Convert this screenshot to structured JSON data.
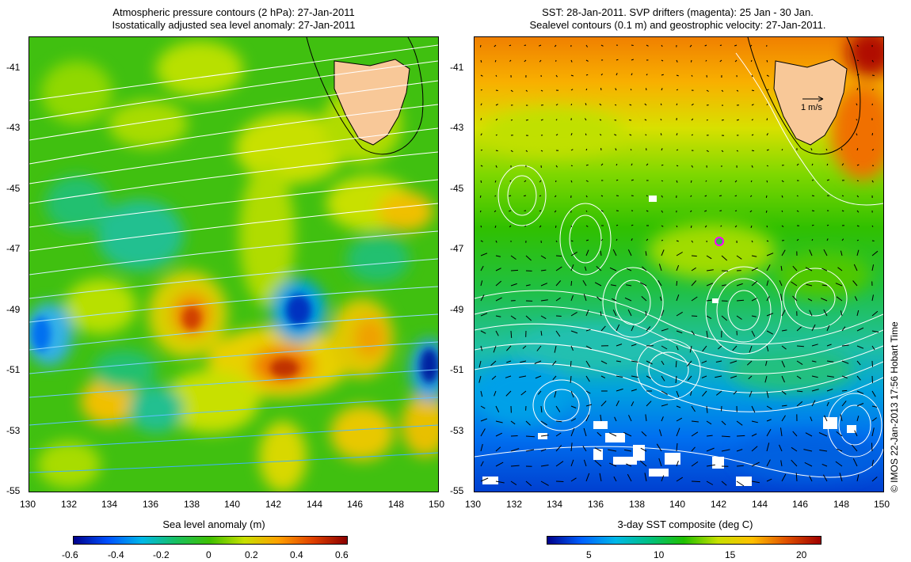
{
  "left": {
    "title_line1": "Atmospheric pressure contours (2 hPa): 27-Jan-2011",
    "title_line2": "Isostatically adjusted sea level anomaly: 27-Jan-2011",
    "colorbar_label": "Sea level anomaly (m)",
    "colorbar_ticks": [
      "-0.6",
      "-0.4",
      "-0.2",
      "0",
      "0.2",
      "0.4",
      "0.6"
    ],
    "colors": [
      "#00008b",
      "#0050ff",
      "#00b8e8",
      "#18c060",
      "#40c000",
      "#c8e000",
      "#ffa000",
      "#e04000",
      "#8b0000"
    ]
  },
  "right": {
    "title_line1": "SST: 28-Jan-2011. SVP drifters (magenta): 25 Jan - 30 Jan.",
    "title_line2": "Sealevel contours (0.1 m) and geostrophic velocity: 27-Jan-2011.",
    "colorbar_label": "3-day SST composite (deg C)",
    "colorbar_ticks": [
      "5",
      "10",
      "15",
      "20"
    ],
    "scale_arrow_label": "1 m/s",
    "drifter_color": "#ff00ff",
    "colors": [
      "#00008b",
      "#0060ff",
      "#00b8e8",
      "#00c080",
      "#20c000",
      "#c8e000",
      "#ffc000",
      "#e05000",
      "#a00000"
    ]
  },
  "lat_ticks": [
    "-41",
    "-43",
    "-45",
    "-47",
    "-49",
    "-51",
    "-53",
    "-55"
  ],
  "lon_ticks": [
    "130",
    "132",
    "134",
    "136",
    "138",
    "140",
    "142",
    "144",
    "146",
    "148",
    "150"
  ],
  "credit": "© IMOS 22-Jan-2013 17:56 Hobart Time",
  "land_color": "#f8c898"
}
